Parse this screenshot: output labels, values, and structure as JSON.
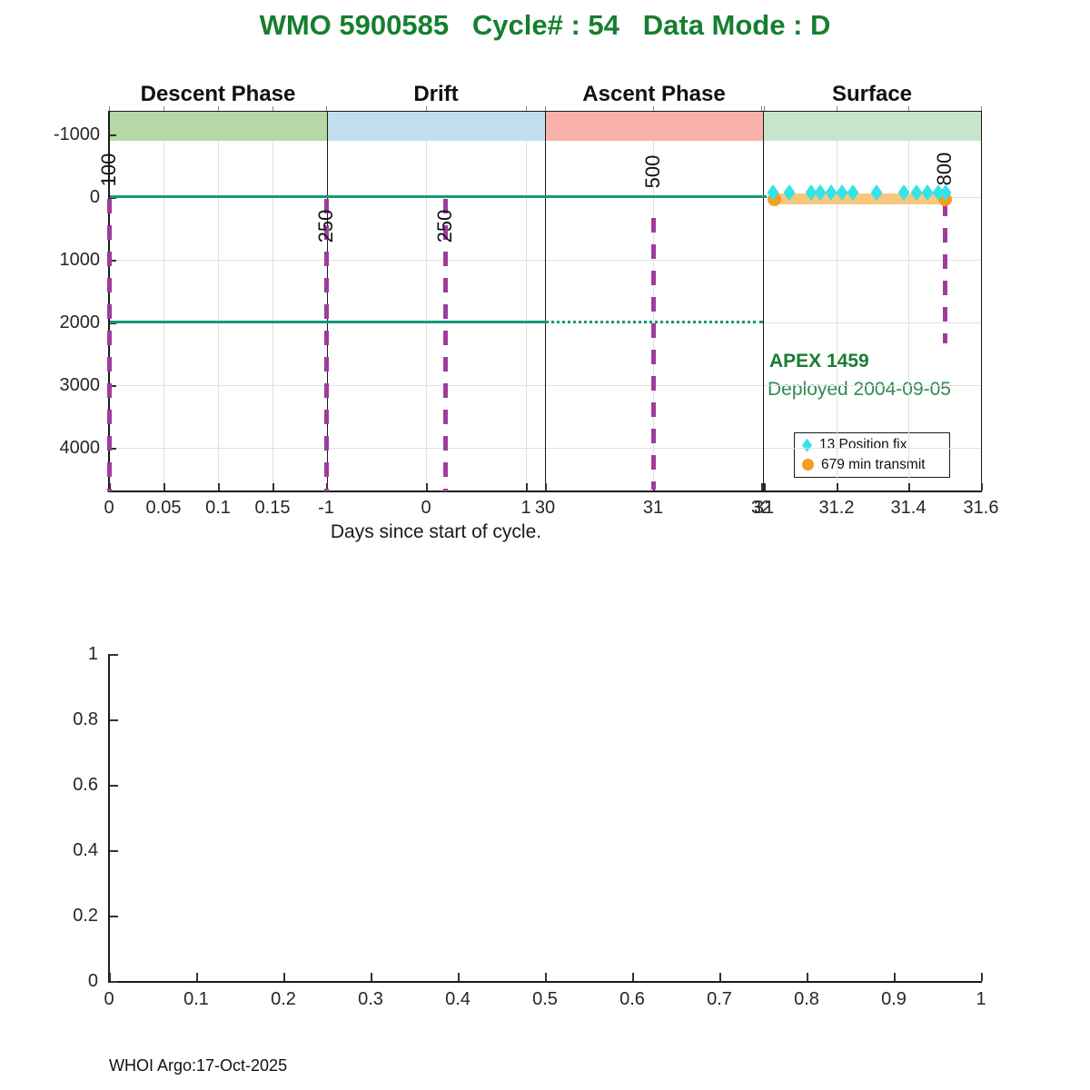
{
  "title": "WMO 5900585   Cycle# : 54   Data Mode : D",
  "top_chart": {
    "phase_labels": [
      "Descent Phase",
      "Drift",
      "Ascent Phase",
      "Surface"
    ],
    "band_colors": [
      "#b6d7a6",
      "#c1deee",
      "#f9b1ab",
      "#c9e4cc"
    ],
    "y_ticks": [
      "-1000",
      "0",
      "1000",
      "2000",
      "3000",
      "4000"
    ],
    "x_ticks_descent": [
      "0",
      "0.05",
      "0.1",
      "0.15"
    ],
    "x_ticks_drift": [
      "-1",
      "0",
      "1"
    ],
    "x_ticks_ascent": [
      "30",
      "31",
      "32"
    ],
    "x_ticks_surface": [
      "31",
      "31.2",
      "31.4",
      "31.6"
    ],
    "depth_labels": [
      "100",
      "250",
      "250",
      "500",
      "800"
    ],
    "xlabel": "Days since start of cycle.",
    "float_name": "APEX 1459",
    "deployed": "Deployed 2004-09-05",
    "legend": [
      {
        "marker": "diamond",
        "color": "#36e2e9",
        "label": "13 Position fix"
      },
      {
        "marker": "circle",
        "color": "#f59d1e",
        "label": "679 min transmit"
      }
    ]
  },
  "bottom_chart": {
    "y_ticks": [
      "1",
      "0.8",
      "0.6",
      "0.4",
      "0.2",
      "0"
    ],
    "x_ticks": [
      "0",
      "0.1",
      "0.2",
      "0.3",
      "0.4",
      "0.5",
      "0.6",
      "0.7",
      "0.8",
      "0.9",
      "1"
    ]
  },
  "footer": "WHOI Argo:17-Oct-2025",
  "chart_data": {
    "type": "line",
    "title": "WMO 5900585   Cycle# : 54   Data Mode : D",
    "xlabel": "Days since start of cycle.",
    "ylabel": "",
    "y_axis": {
      "ticks": [
        -1000,
        0,
        1000,
        2000,
        3000,
        4000
      ],
      "direction": "reversed-depth",
      "ylim": [
        -1400,
        4700
      ]
    },
    "panels": [
      {
        "label": "Descent Phase",
        "x_ticks": [
          0,
          0.05,
          0.1,
          0.15
        ],
        "band_color": "#b6d7a6"
      },
      {
        "label": "Drift",
        "x_ticks": [
          -1,
          0,
          1
        ],
        "band_color": "#c1deee"
      },
      {
        "label": "Ascent Phase",
        "x_ticks": [
          30,
          31,
          32
        ],
        "band_color": "#f9b1ab"
      },
      {
        "label": "Surface",
        "x_ticks": [
          31,
          31.2,
          31.4,
          31.6
        ],
        "band_color": "#c9e4cc"
      }
    ],
    "pressure_marker_lines": [
      {
        "panel": "Descent Phase",
        "label": 100,
        "depth_from": 0,
        "depth_to": 4650
      },
      {
        "panel": "Drift",
        "label": 250,
        "at_panel_start": true,
        "depth_from": 0,
        "depth_to": 4650
      },
      {
        "panel": "Drift",
        "label": 250,
        "depth_from": 0,
        "depth_to": 4650
      },
      {
        "panel": "Ascent Phase",
        "label": 500,
        "x": 31,
        "depth_from": 300,
        "depth_to": 4600
      },
      {
        "panel": "Surface",
        "label": 800,
        "x": 31.5,
        "depth_from": 0,
        "depth_to": 2300
      }
    ],
    "horizontal_lines": [
      {
        "depth": 0,
        "style": "solid",
        "color": "#16987a",
        "span": "Descent through Ascent"
      },
      {
        "depth": 2000,
        "style": "solid then dotted",
        "color": "#16987a",
        "solid_span": "Descent+Drift",
        "dotted_span": "Ascent"
      }
    ],
    "position_fixes": {
      "count": 13,
      "depth": 0,
      "x": [
        31.025,
        31.07,
        31.13,
        31.155,
        31.185,
        31.215,
        31.245,
        31.31,
        31.385,
        31.42,
        31.45,
        31.48,
        31.5
      ]
    },
    "transmit": {
      "minutes": 679,
      "depth": 0,
      "x_start": 31.028,
      "x_end": 31.498
    },
    "annotations": [
      "APEX 1459",
      "Deployed 2004-09-05"
    ],
    "legend": [
      "13 Position fix",
      "679 min transmit"
    ],
    "legend_position": "lower right of Surface panel",
    "bottom_axes": {
      "type": "empty",
      "x_ticks": [
        0,
        0.1,
        0.2,
        0.3,
        0.4,
        0.5,
        0.6,
        0.7,
        0.8,
        0.9,
        1
      ],
      "y_ticks": [
        0,
        0.2,
        0.4,
        0.6,
        0.8,
        1
      ],
      "grid": false
    }
  }
}
